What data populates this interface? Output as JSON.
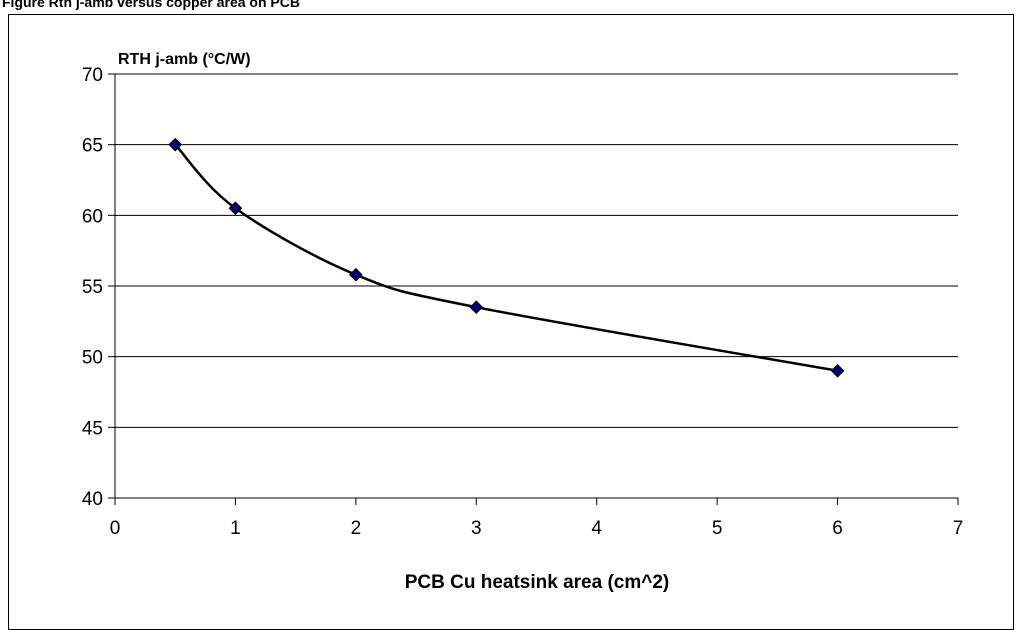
{
  "caption": "Figure   Rth j-amb versus copper area on PCB",
  "chart_data": {
    "type": "line",
    "title": "",
    "ylabel": "RTH j-amb (°C/W)",
    "xlabel": "PCB Cu heatsink area (cm^2)",
    "xlim": [
      0,
      7
    ],
    "ylim": [
      40,
      70
    ],
    "xticks": [
      "0",
      "1",
      "2",
      "3",
      "4",
      "5",
      "6",
      "7"
    ],
    "yticks": [
      "40",
      "45",
      "50",
      "55",
      "60",
      "65",
      "70"
    ],
    "grid": "horizontal",
    "legend": "none",
    "series": [
      {
        "x": [
          0.5,
          1,
          2,
          3,
          6
        ],
        "y": [
          65,
          60.5,
          55.8,
          53.5,
          49
        ],
        "color": "#000000",
        "marker_color": "#000080"
      }
    ]
  }
}
